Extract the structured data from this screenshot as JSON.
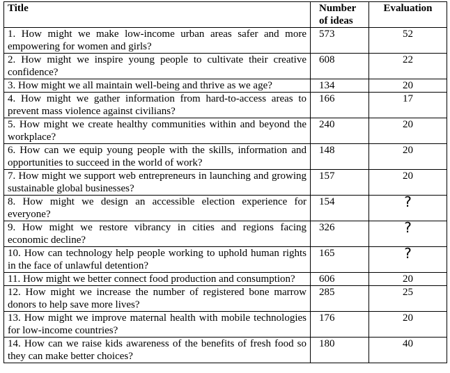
{
  "headers": {
    "title": "Title",
    "ideas": "Number of ideas",
    "evaluation": "Evaluation"
  },
  "rows": [
    {
      "title": "1. How might we make low-income urban areas safer and more empowering for women and girls?",
      "ideas": "573",
      "evaluation": "52"
    },
    {
      "title": "2. How might we inspire young people to cultivate their creative confidence?",
      "ideas": "608",
      "evaluation": "22"
    },
    {
      "title": "3. How might we all maintain well-being and thrive as we age?",
      "ideas": "134",
      "evaluation": "20"
    },
    {
      "title": "4. How might we gather information from hard-to-access areas to prevent mass violence against civilians?",
      "ideas": "166",
      "evaluation": "17"
    },
    {
      "title": "5. How might we create healthy communities within and beyond the workplace?",
      "ideas": "240",
      "evaluation": "20"
    },
    {
      "title": "6. How can we equip young people with the skills, information and opportunities to succeed in the world of work?",
      "ideas": "148",
      "evaluation": "20"
    },
    {
      "title": "7. How might we support web entrepreneurs in launching and growing sustainable global businesses?",
      "ideas": "157",
      "evaluation": "20"
    },
    {
      "title": "8. How might we design an accessible election experience for everyone?",
      "ideas": "154",
      "evaluation": "?"
    },
    {
      "title": "9. How might we restore vibrancy in cities and regions facing economic decline?",
      "ideas": "326",
      "evaluation": "?"
    },
    {
      "title": "10. How can technology help people working to uphold human rights in the face of unlawful detention?",
      "ideas": "165",
      "evaluation": "?"
    },
    {
      "title": "11. How might we better connect food production and consumption?",
      "ideas": "606",
      "evaluation": "20"
    },
    {
      "title": "12. How might we increase the number of registered bone marrow donors to help save more lives?",
      "ideas": "285",
      "evaluation": "25"
    },
    {
      "title": "13. How might we improve maternal health with mobile technologies for low-income countries?",
      "ideas": "176",
      "evaluation": "20"
    },
    {
      "title": "14. How can we raise kids awareness of the benefits of fresh food so they can make better choices?",
      "ideas": "180",
      "evaluation": "40"
    }
  ]
}
